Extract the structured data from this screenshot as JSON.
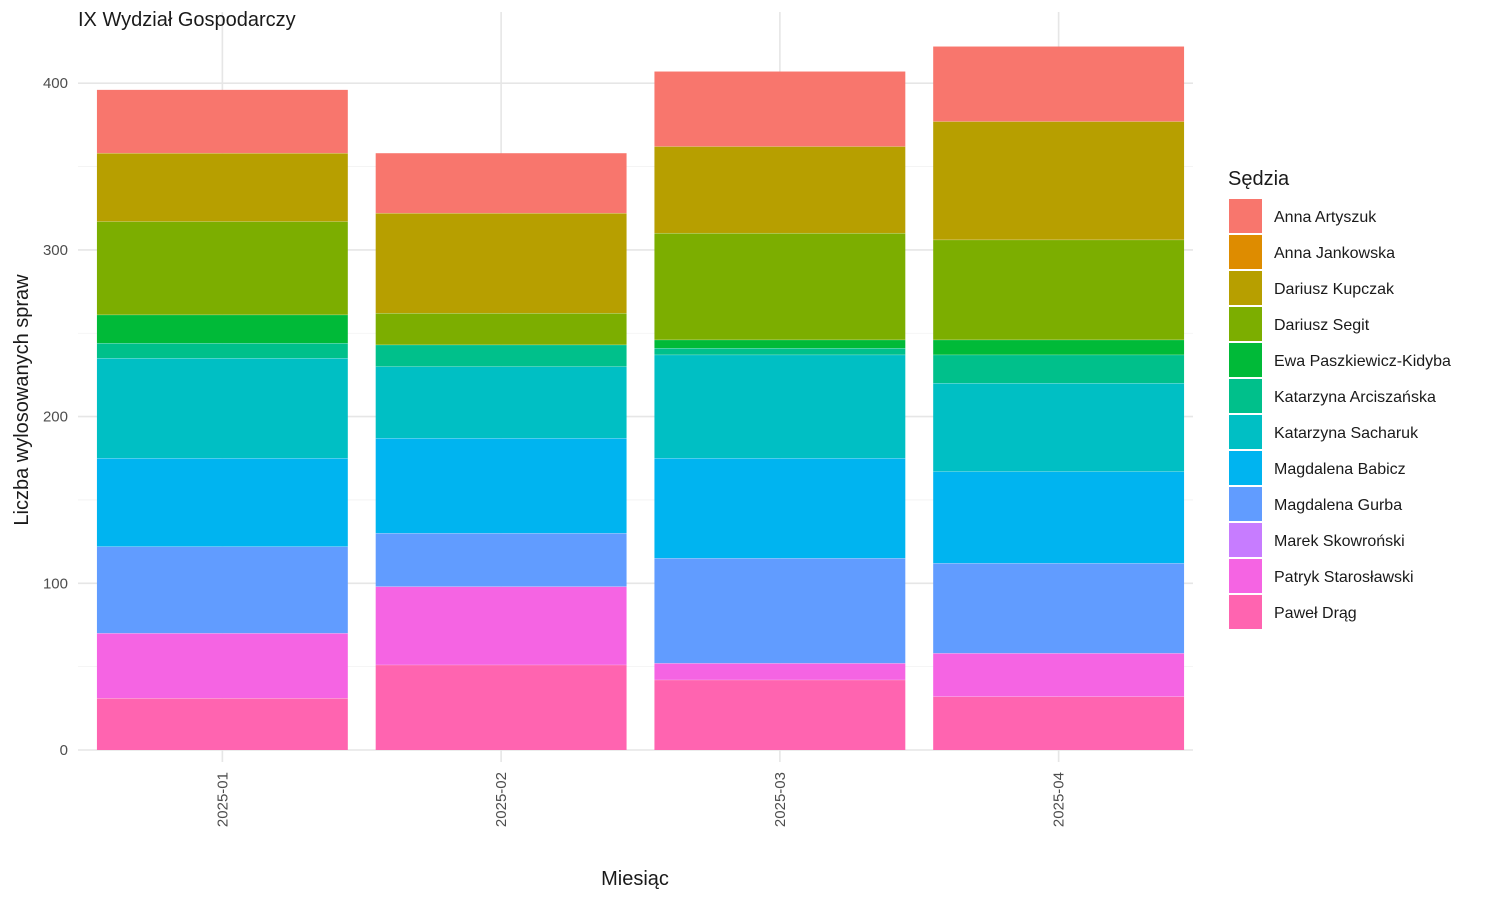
{
  "chart_data": {
    "type": "bar",
    "stacked": true,
    "title": "IX Wydział Gospodarczy",
    "xlabel": "Miesiąc",
    "ylabel": "Liczba wylosowanych spraw",
    "categories": [
      "2025-01",
      "2025-02",
      "2025-03",
      "2025-04"
    ],
    "yticks": [
      0,
      100,
      200,
      300,
      400
    ],
    "ylim": [
      0,
      430
    ],
    "legend_title": "Sędzia",
    "legend_position": "right",
    "grid": true,
    "series": [
      {
        "name": "Anna Artyszuk",
        "color": "#F8766D",
        "values": [
          38,
          36,
          45,
          45
        ]
      },
      {
        "name": "Anna Jankowska",
        "color": "#DE8C00",
        "values": [
          0,
          0,
          0,
          0
        ]
      },
      {
        "name": "Dariusz Kupczak",
        "color": "#B79F00",
        "values": [
          41,
          60,
          52,
          71
        ]
      },
      {
        "name": "Dariusz Segit",
        "color": "#7CAE00",
        "values": [
          56,
          19,
          64,
          60
        ]
      },
      {
        "name": "Ewa Paszkiewicz-Kidyba",
        "color": "#00BA38",
        "values": [
          17,
          0,
          5,
          9
        ]
      },
      {
        "name": "Katarzyna Arciszańska",
        "color": "#00C08B",
        "values": [
          9,
          13,
          4,
          17
        ]
      },
      {
        "name": "Katarzyna Sacharuk",
        "color": "#00BFC4",
        "values": [
          60,
          43,
          62,
          53
        ]
      },
      {
        "name": "Magdalena Babicz",
        "color": "#00B4F0",
        "values": [
          53,
          57,
          60,
          55
        ]
      },
      {
        "name": "Magdalena Gurba",
        "color": "#619CFF",
        "values": [
          52,
          32,
          63,
          54
        ]
      },
      {
        "name": "Marek Skowroński",
        "color": "#C77CFF",
        "values": [
          0,
          0,
          0,
          0
        ]
      },
      {
        "name": "Patryk Starosławski",
        "color": "#F564E3",
        "values": [
          39,
          47,
          10,
          26
        ]
      },
      {
        "name": "Paweł Drąg",
        "color": "#FF64B0",
        "values": [
          31,
          51,
          42,
          32
        ]
      }
    ]
  }
}
